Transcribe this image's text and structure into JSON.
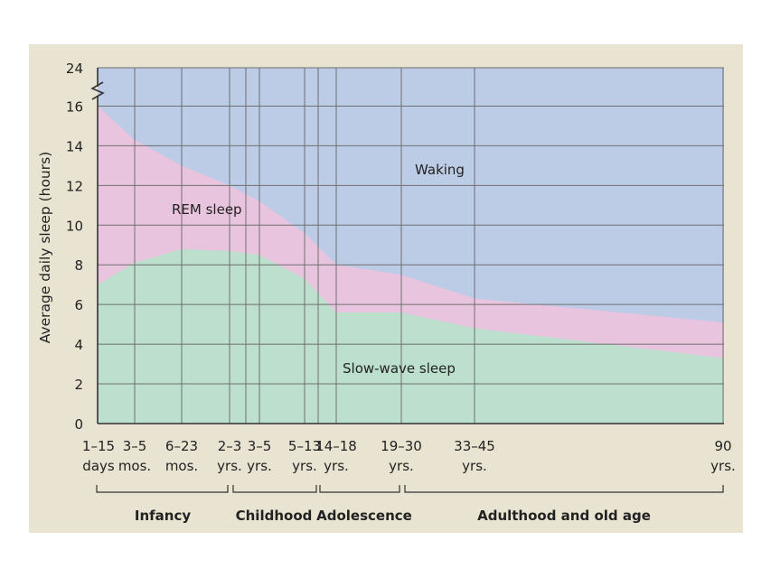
{
  "chart_data": {
    "type": "area",
    "ylabel": "Average daily sleep (hours)",
    "ylim": [
      0,
      24
    ],
    "y_ticks": [
      "0",
      "2",
      "4",
      "6",
      "8",
      "10",
      "12",
      "14",
      "16",
      "24"
    ],
    "axis_break": "between 16 and 24",
    "grid": true,
    "x_categories": [
      {
        "top": "1–15",
        "bottom": "days"
      },
      {
        "top": "3–5",
        "bottom": "mos."
      },
      {
        "top": "6–23",
        "bottom": "mos."
      },
      {
        "top": "2–3",
        "bottom": "yrs."
      },
      {
        "top": "3–5",
        "bottom": "yrs."
      },
      {
        "top": "5–13",
        "bottom": "yrs."
      },
      {
        "top": "14–18",
        "bottom": "yrs."
      },
      {
        "top": "19–30",
        "bottom": "yrs."
      },
      {
        "top": "33–45",
        "bottom": "yrs."
      },
      {
        "top": "90",
        "bottom": "yrs."
      }
    ],
    "age_groups": [
      "Infancy",
      "Childhood",
      "Adolescence",
      "Adulthood and old age"
    ],
    "region_labels": {
      "waking": "Waking",
      "rem": "REM sleep",
      "slow_wave": "Slow-wave sleep"
    },
    "series": [
      {
        "name": "Slow-wave sleep",
        "values": [
          7.0,
          8.1,
          8.8,
          8.7,
          8.5,
          7.3,
          5.6,
          5.6,
          4.8,
          3.3
        ]
      },
      {
        "name": "REM sleep",
        "values": [
          16.0,
          14.3,
          13.0,
          12.0,
          11.2,
          9.6,
          8.0,
          7.5,
          6.3,
          5.1
        ]
      }
    ],
    "colors": {
      "waking": "#bccbe6",
      "rem": "#e9c4df",
      "slow_wave": "#bcdfce",
      "grid": "#6f6f6f",
      "background": "#e9e3d2"
    }
  }
}
